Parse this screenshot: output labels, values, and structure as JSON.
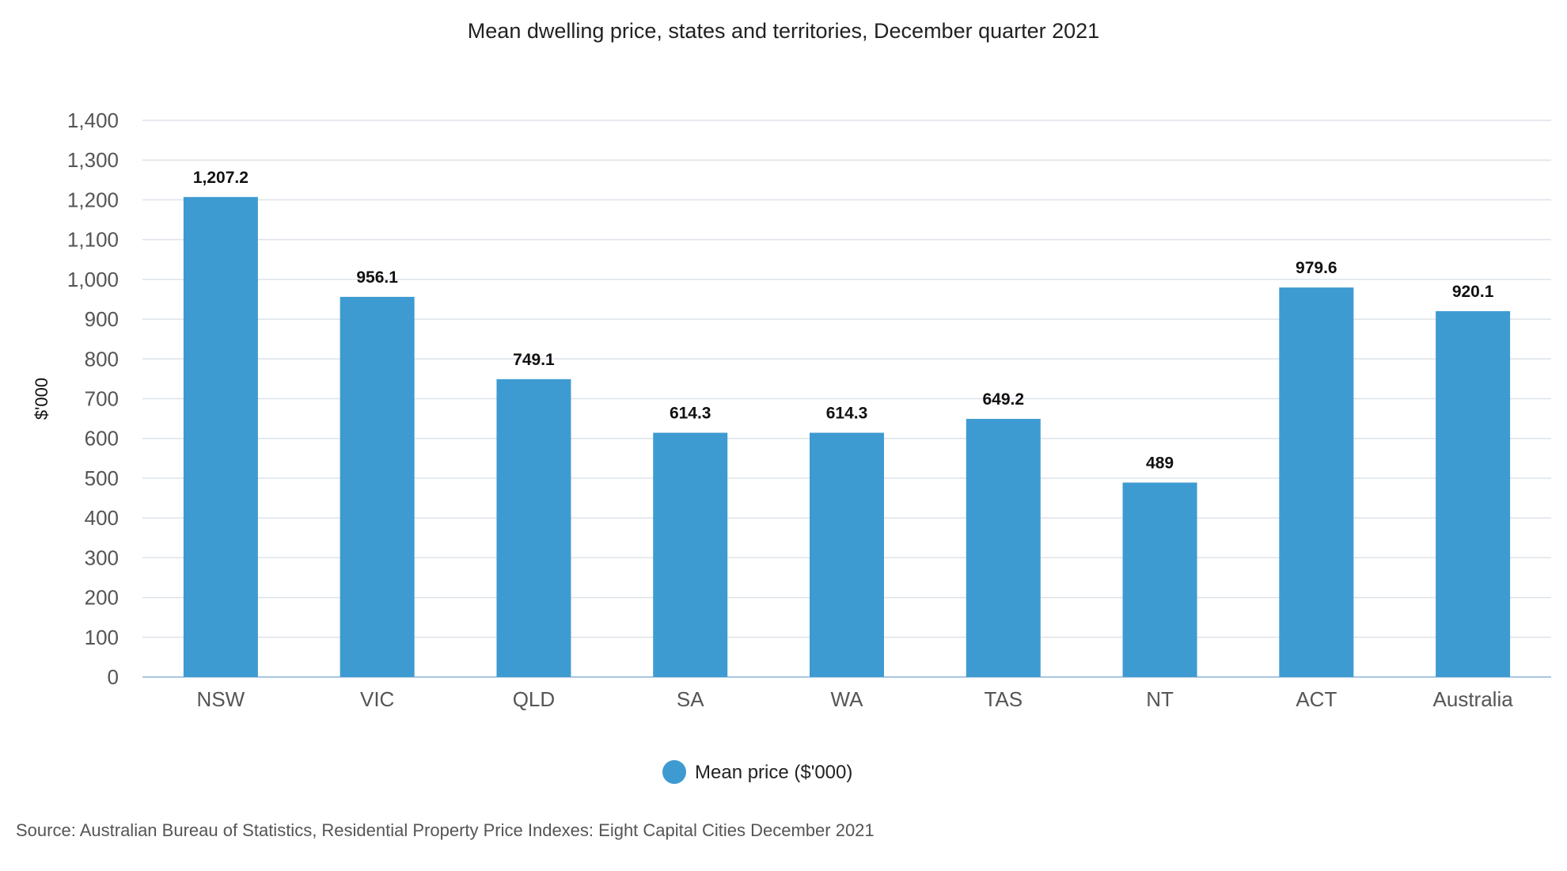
{
  "chart_data": {
    "type": "bar",
    "title": "Mean dwelling price, states and territories, December quarter 2021",
    "ylabel": "$'000",
    "xlabel": "",
    "categories": [
      "NSW",
      "VIC",
      "QLD",
      "SA",
      "WA",
      "TAS",
      "NT",
      "ACT",
      "Australia"
    ],
    "series": [
      {
        "name": "Mean price ($'000)",
        "values": [
          1207.2,
          956.1,
          749.1,
          614.3,
          614.3,
          649.2,
          489,
          979.6,
          920.1
        ],
        "data_labels": [
          "1,207.2",
          "956.1",
          "749.1",
          "614.3",
          "614.3",
          "649.2",
          "489",
          "979.6",
          "920.1"
        ],
        "color": "#3e9bd1"
      }
    ],
    "ylim": [
      0,
      1400
    ],
    "yticks": [
      0,
      100,
      200,
      300,
      400,
      500,
      600,
      700,
      800,
      900,
      1000,
      1100,
      1200,
      1300,
      1400
    ],
    "ytick_labels": [
      "0",
      "100",
      "200",
      "300",
      "400",
      "500",
      "600",
      "700",
      "800",
      "900",
      "1,000",
      "1,100",
      "1,200",
      "1,300",
      "1,400"
    ],
    "grid": true,
    "legend_position": "bottom-center"
  },
  "source": "Source: Australian Bureau of Statistics, Residential Property Price Indexes: Eight Capital Cities December 2021",
  "colors": {
    "bar": "#3e9bd1",
    "grid": "#dde3ea",
    "axis": "#a9c7e2"
  }
}
